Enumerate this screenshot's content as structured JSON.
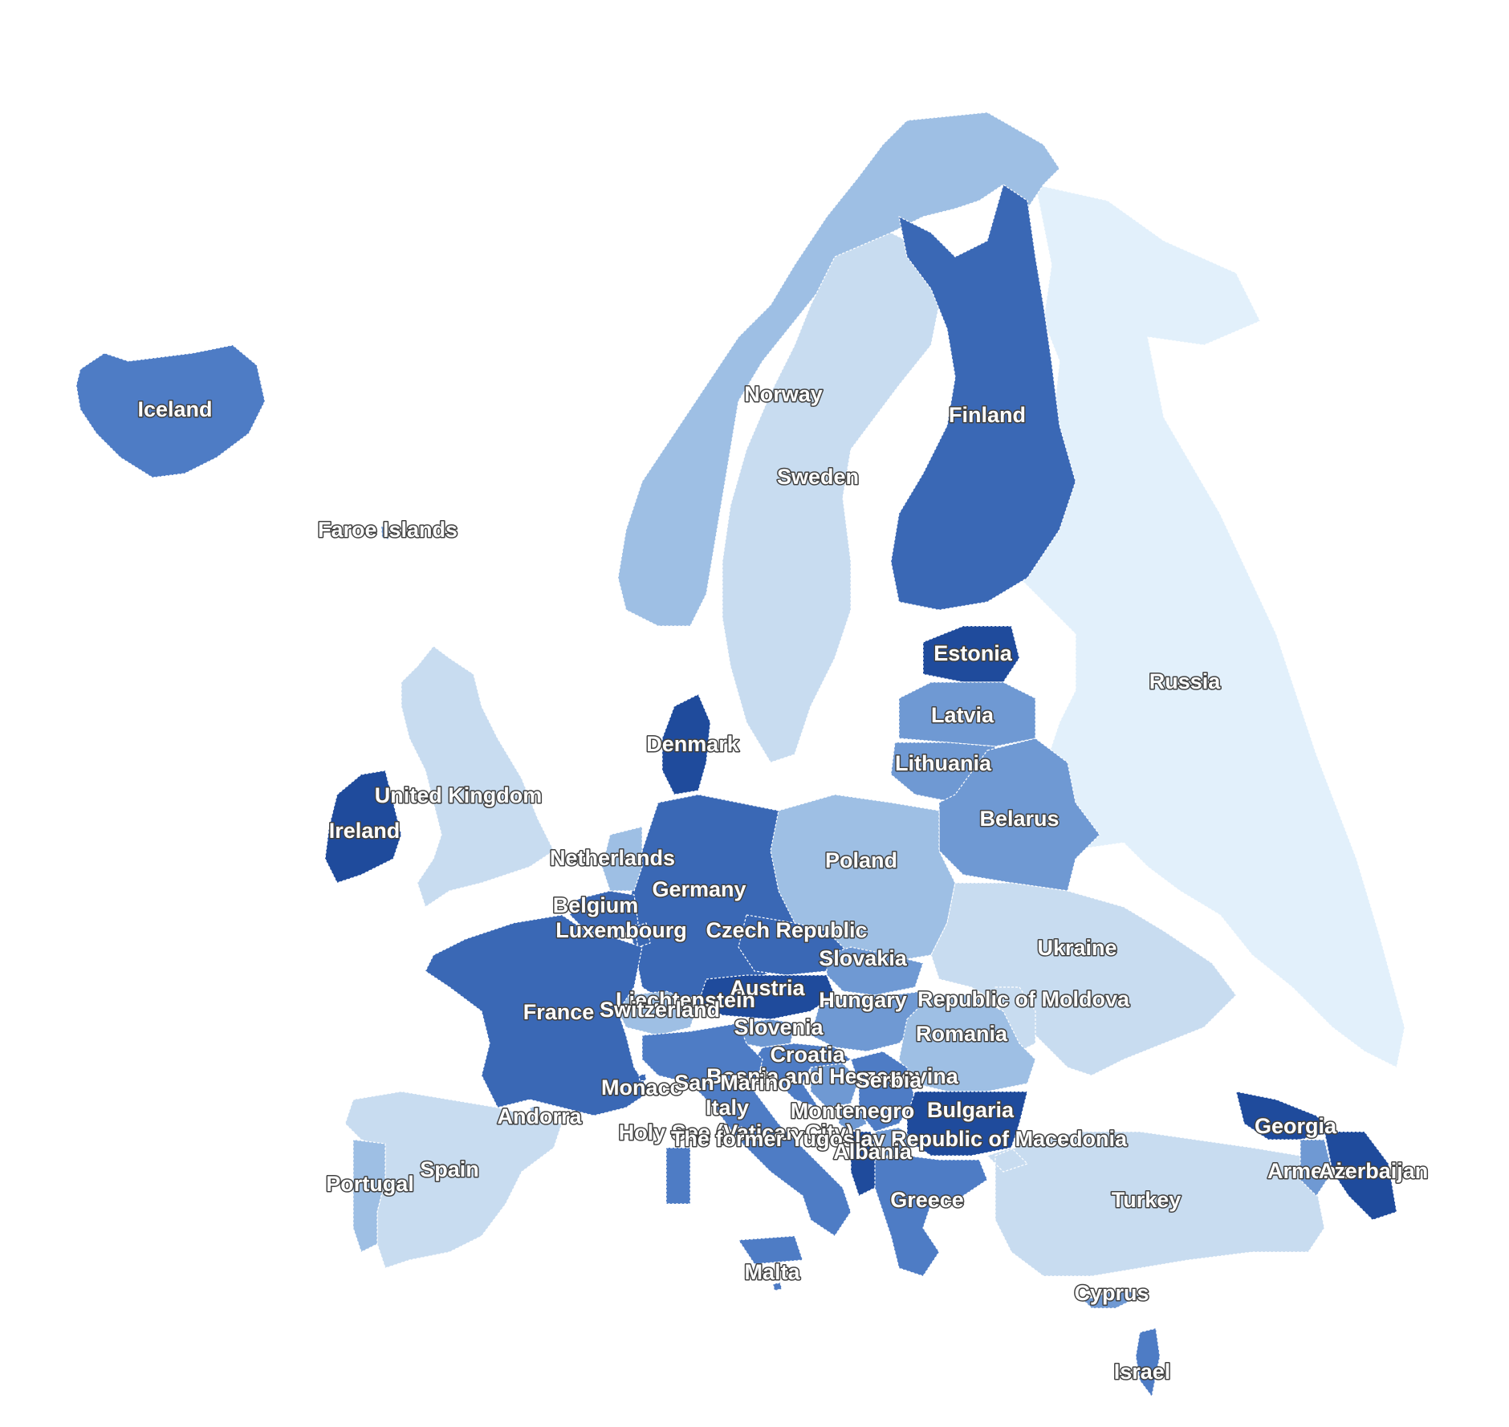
{
  "colors": {
    "lightest": "#e2f0fb",
    "light": "#c8dcf0",
    "medium_light": "#9ebfe4",
    "medium": "#6f99d3",
    "medium_dark": "#4e7cc5",
    "dark": "#3a68b5",
    "darkest": "#1f4b9c"
  },
  "countries": [
    {
      "id": "iceland",
      "label": "Iceland",
      "shade": "medium_dark"
    },
    {
      "id": "faroe",
      "label": "Faroe Islands",
      "shade": "medium"
    },
    {
      "id": "norway",
      "label": "Norway",
      "shade": "medium_light"
    },
    {
      "id": "sweden",
      "label": "Sweden",
      "shade": "light"
    },
    {
      "id": "finland",
      "label": "Finland",
      "shade": "dark"
    },
    {
      "id": "russia",
      "label": "Russia",
      "shade": "lightest"
    },
    {
      "id": "estonia",
      "label": "Estonia",
      "shade": "darkest"
    },
    {
      "id": "latvia",
      "label": "Latvia",
      "shade": "medium"
    },
    {
      "id": "lithuania",
      "label": "Lithuania",
      "shade": "medium"
    },
    {
      "id": "belarus",
      "label": "Belarus",
      "shade": "medium"
    },
    {
      "id": "denmark",
      "label": "Denmark",
      "shade": "darkest"
    },
    {
      "id": "uk",
      "label": "United Kingdom",
      "shade": "light"
    },
    {
      "id": "ireland",
      "label": "Ireland",
      "shade": "darkest"
    },
    {
      "id": "netherlands",
      "label": "Netherlands",
      "shade": "medium_light"
    },
    {
      "id": "germany",
      "label": "Germany",
      "shade": "dark"
    },
    {
      "id": "poland",
      "label": "Poland",
      "shade": "medium_light"
    },
    {
      "id": "belgium",
      "label": "Belgium",
      "shade": "dark"
    },
    {
      "id": "luxembourg",
      "label": "Luxembourg",
      "shade": "dark"
    },
    {
      "id": "czech",
      "label": "Czech Republic",
      "shade": "dark"
    },
    {
      "id": "slovakia",
      "label": "Slovakia",
      "shade": "medium"
    },
    {
      "id": "ukraine",
      "label": "Ukraine",
      "shade": "light"
    },
    {
      "id": "austria",
      "label": "Austria",
      "shade": "darkest"
    },
    {
      "id": "liechtenstein",
      "label": "Liechtenstein",
      "shade": "dark"
    },
    {
      "id": "switzerland",
      "label": "Switzerland",
      "shade": "medium_light"
    },
    {
      "id": "france",
      "label": "France",
      "shade": "dark"
    },
    {
      "id": "hungary",
      "label": "Hungary",
      "shade": "medium"
    },
    {
      "id": "moldova",
      "label": "Republic of Moldova",
      "shade": "light"
    },
    {
      "id": "slovenia",
      "label": "Slovenia",
      "shade": "medium"
    },
    {
      "id": "romania",
      "label": "Romania",
      "shade": "medium_light"
    },
    {
      "id": "croatia",
      "label": "Croatia",
      "shade": "medium_dark"
    },
    {
      "id": "bosnia",
      "label": "Bosnia and Herzegovina",
      "shade": "medium"
    },
    {
      "id": "serbia",
      "label": "Serbia",
      "shade": "medium_dark"
    },
    {
      "id": "monaco",
      "label": "Monaco",
      "shade": "dark"
    },
    {
      "id": "sanmarino",
      "label": "San Marino",
      "shade": "medium"
    },
    {
      "id": "italy",
      "label": "Italy",
      "shade": "medium_dark"
    },
    {
      "id": "montenegro",
      "label": "Montenegro",
      "shade": "medium"
    },
    {
      "id": "bulgaria",
      "label": "Bulgaria",
      "shade": "darkest"
    },
    {
      "id": "andorra",
      "label": "Andorra",
      "shade": "medium_light"
    },
    {
      "id": "vatican",
      "label": "Holy See (Vatican City)",
      "shade": "medium"
    },
    {
      "id": "macedonia",
      "label": "The former Yugoslav Republic of Macedonia",
      "shade": "medium"
    },
    {
      "id": "albania",
      "label": "Albania",
      "shade": "darkest"
    },
    {
      "id": "georgia",
      "label": "Georgia",
      "shade": "darkest"
    },
    {
      "id": "armenia",
      "label": "Armenia",
      "shade": "medium"
    },
    {
      "id": "azerbaijan",
      "label": "Azerbaijan",
      "shade": "darkest"
    },
    {
      "id": "portugal",
      "label": "Portugal",
      "shade": "medium_light"
    },
    {
      "id": "spain",
      "label": "Spain",
      "shade": "light"
    },
    {
      "id": "greece",
      "label": "Greece",
      "shade": "medium_dark"
    },
    {
      "id": "turkey",
      "label": "Turkey",
      "shade": "light"
    },
    {
      "id": "malta",
      "label": "Malta",
      "shade": "medium_dark"
    },
    {
      "id": "cyprus",
      "label": "Cyprus",
      "shade": "medium"
    },
    {
      "id": "israel",
      "label": "Israel",
      "shade": "medium_dark"
    }
  ]
}
